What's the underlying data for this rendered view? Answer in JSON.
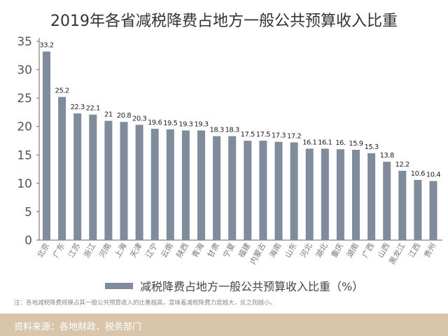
{
  "chart_data": {
    "type": "bar",
    "title": "2019年各省减税降费占地方一般公共预算收入比重",
    "categories": [
      "北京",
      "广东",
      "江苏",
      "浙江",
      "河南",
      "上海",
      "天津",
      "辽宁",
      "云南",
      "陕西",
      "青海",
      "甘肃",
      "宁夏",
      "福建",
      "内蒙古",
      "海南",
      "山东",
      "河北",
      "湖北",
      "重庆",
      "湖南",
      "广西",
      "山西",
      "黑龙江",
      "江西",
      "贵州"
    ],
    "values": [
      33.2,
      25.2,
      22.3,
      22.1,
      21,
      20.8,
      20.3,
      19.6,
      19.5,
      19.3,
      19.3,
      18.3,
      18.3,
      17.5,
      17.5,
      17.3,
      17.2,
      16.1,
      16.1,
      16,
      15.9,
      15.3,
      13.8,
      12.2,
      10.6,
      10.4
    ],
    "data_labels": [
      "33.2",
      "25.2",
      "22.3",
      "22.1",
      "21",
      "20.8",
      "20.3",
      "19.6",
      "19.5",
      "19.3",
      "19.3",
      "18.3",
      "18.3",
      "17.5",
      "17.5",
      "17.3",
      "17.2",
      "16.1",
      "16.1",
      "16.",
      "15.9",
      "15.3",
      "13.8",
      "12.2",
      "10.6",
      "10.4"
    ],
    "series": [
      {
        "name": "减税降费占地方一般公共预算收入比重（%）"
      }
    ],
    "yticks": [
      "0",
      "5",
      "10",
      "15",
      "20",
      "25",
      "30",
      "35"
    ],
    "ylim": [
      0,
      35
    ],
    "xlabel": "",
    "ylabel": "",
    "grid": false,
    "legend": "bottom",
    "bar_color": "#808b9c"
  },
  "note": "注：各地减税降费规模占其一般公共预算收入的比重越高，意味着减税降费力度越大，反之则越小。",
  "footer": "资料来源：各地财政、税务部门"
}
